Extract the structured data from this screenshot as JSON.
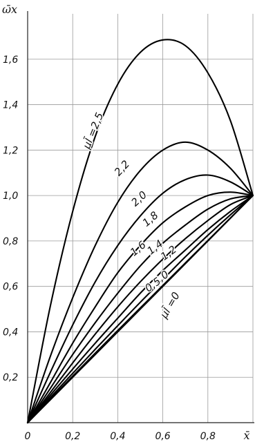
{
  "chart_data": {
    "type": "line",
    "title": "",
    "xlabel": "x̄",
    "ylabel": "ω̄x",
    "xlim": [
      0,
      1.0
    ],
    "ylim": [
      0,
      1.8
    ],
    "grid": true,
    "x_ticks": [
      {
        "value": 0,
        "label": "0"
      },
      {
        "value": 0.2,
        "label": "0,2"
      },
      {
        "value": 0.4,
        "label": "0,4"
      },
      {
        "value": 0.6,
        "label": "0,6"
      },
      {
        "value": 0.8,
        "label": "0,8"
      }
    ],
    "y_ticks": [
      {
        "value": 0.2,
        "label": "0,2"
      },
      {
        "value": 0.4,
        "label": "0,4"
      },
      {
        "value": 0.6,
        "label": "0,6"
      },
      {
        "value": 0.8,
        "label": "0,8"
      },
      {
        "value": 1.0,
        "label": "1,0"
      },
      {
        "value": 1.2,
        "label": "1,2"
      },
      {
        "value": 1.4,
        "label": "1,4"
      },
      {
        "value": 1.6,
        "label": "1,6"
      }
    ],
    "x": [
      0,
      0.1,
      0.2,
      0.3,
      0.4,
      0.5,
      0.6,
      0.7,
      0.8,
      0.9,
      1.0
    ],
    "series": [
      {
        "name": "μl̄ =2,5",
        "values": [
          0,
          0.51,
          0.93,
          1.26,
          1.49,
          1.63,
          1.685,
          1.66,
          1.54,
          1.33,
          1.0
        ]
      },
      {
        "name": "2,2",
        "values": [
          0,
          0.29,
          0.55,
          0.78,
          0.97,
          1.11,
          1.2,
          1.235,
          1.2,
          1.12,
          1.0
        ]
      },
      {
        "name": "2,0",
        "values": [
          0,
          0.22,
          0.43,
          0.62,
          0.78,
          0.91,
          1.01,
          1.07,
          1.09,
          1.06,
          1.0
        ]
      },
      {
        "name": "1,8",
        "values": [
          0,
          0.175,
          0.35,
          0.51,
          0.66,
          0.78,
          0.88,
          0.95,
          1.0,
          1.015,
          1.0
        ]
      },
      {
        "name": "1,6",
        "values": [
          0,
          0.15,
          0.3,
          0.44,
          0.57,
          0.69,
          0.79,
          0.87,
          0.94,
          0.985,
          1.0
        ]
      },
      {
        "name": "1,4",
        "values": [
          0,
          0.132,
          0.263,
          0.39,
          0.51,
          0.62,
          0.72,
          0.81,
          0.89,
          0.96,
          1.0
        ]
      },
      {
        "name": "1,2",
        "values": [
          0,
          0.12,
          0.236,
          0.35,
          0.46,
          0.57,
          0.67,
          0.76,
          0.85,
          0.93,
          1.0
        ]
      },
      {
        "name": "1,0",
        "values": [
          0,
          0.11,
          0.217,
          0.323,
          0.427,
          0.53,
          0.63,
          0.73,
          0.825,
          0.915,
          1.0
        ]
      },
      {
        "name": "0,5",
        "values": [
          0,
          0.103,
          0.205,
          0.306,
          0.406,
          0.505,
          0.604,
          0.703,
          0.802,
          0.901,
          1.0
        ]
      },
      {
        "name": "μl̄ =0",
        "values": [
          0,
          0.1,
          0.2,
          0.3,
          0.4,
          0.5,
          0.6,
          0.7,
          0.8,
          0.9,
          1.0
        ]
      }
    ],
    "curve_labels": [
      {
        "series": 0,
        "text": "μl̄ =2,5",
        "at_x": 0.305,
        "at_y": 1.28,
        "angle": -68
      },
      {
        "series": 1,
        "text": "2,2",
        "at_x": 0.43,
        "at_y": 1.11,
        "angle": -47
      },
      {
        "series": 2,
        "text": "2,0",
        "at_x": 0.505,
        "at_y": 0.975,
        "angle": -43
      },
      {
        "series": 3,
        "text": "1,8",
        "at_x": 0.555,
        "at_y": 0.885,
        "angle": -41
      },
      {
        "series": 4,
        "text": "1,6",
        "at_x": 0.5,
        "at_y": 0.755,
        "angle": -40
      },
      {
        "series": 5,
        "text": "1,4",
        "at_x": 0.575,
        "at_y": 0.76,
        "angle": -38
      },
      {
        "series": 6,
        "text": "1,2",
        "at_x": 0.635,
        "at_y": 0.735,
        "angle": -37
      },
      {
        "series": 7,
        "text": "1,0",
        "at_x": 0.6,
        "at_y": 0.625,
        "angle": -36
      },
      {
        "series": 8,
        "text": "0,5",
        "at_x": 0.565,
        "at_y": 0.595,
        "angle": -36
      },
      {
        "series": 9,
        "text": "μl̄ =0",
        "at_x": 0.645,
        "at_y": 0.51,
        "angle": -60
      }
    ]
  }
}
